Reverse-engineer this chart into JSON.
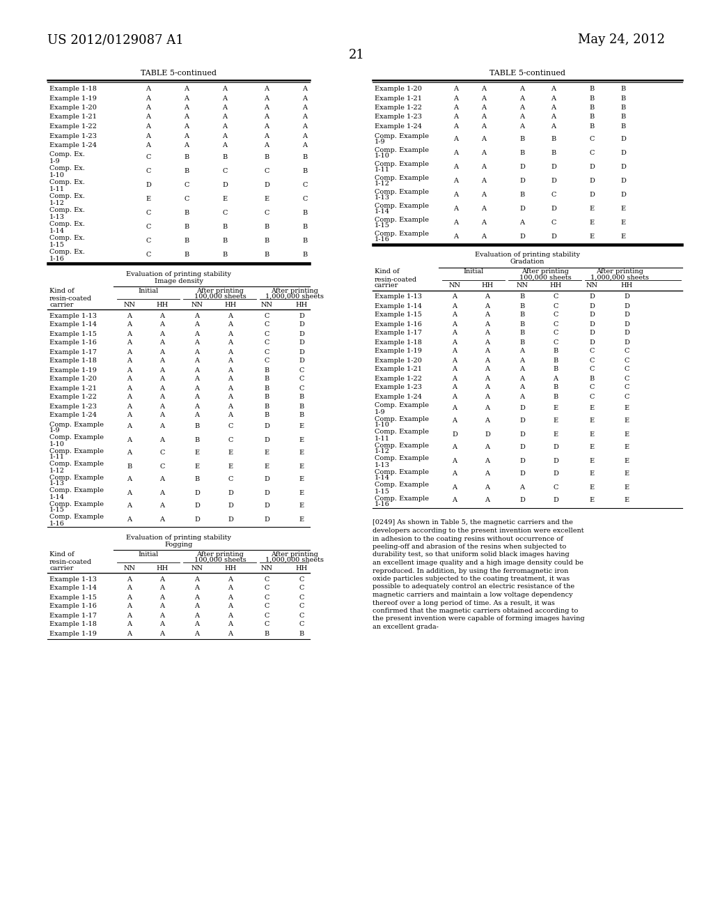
{
  "page_number": "21",
  "patent_number": "US 2012/0129087 A1",
  "date": "May 24, 2012",
  "background_color": "#ffffff",
  "left_top_table": {
    "title": "TABLE 5-continued",
    "rows": [
      [
        "Example 1-18",
        "A",
        "A",
        "A",
        "A",
        "A"
      ],
      [
        "Example 1-19",
        "A",
        "A",
        "A",
        "A",
        "A"
      ],
      [
        "Example 1-20",
        "A",
        "A",
        "A",
        "A",
        "A"
      ],
      [
        "Example 1-21",
        "A",
        "A",
        "A",
        "A",
        "A"
      ],
      [
        "Example 1-22",
        "A",
        "A",
        "A",
        "A",
        "A"
      ],
      [
        "Example 1-23",
        "A",
        "A",
        "A",
        "A",
        "A"
      ],
      [
        "Example 1-24",
        "A",
        "A",
        "A",
        "A",
        "A"
      ],
      [
        "Comp. Ex.\n1-9",
        "C",
        "B",
        "B",
        "B",
        "B"
      ],
      [
        "Comp. Ex.\n1-10",
        "C",
        "B",
        "C",
        "C",
        "B"
      ],
      [
        "Comp. Ex.\n1-11",
        "D",
        "C",
        "D",
        "D",
        "C"
      ],
      [
        "Comp. Ex.\n1-12",
        "E",
        "C",
        "E",
        "E",
        "C"
      ],
      [
        "Comp. Ex.\n1-13",
        "C",
        "B",
        "C",
        "C",
        "B"
      ],
      [
        "Comp. Ex.\n1-14",
        "C",
        "B",
        "B",
        "B",
        "B"
      ],
      [
        "Comp. Ex.\n1-15",
        "C",
        "B",
        "B",
        "B",
        "B"
      ],
      [
        "Comp. Ex.\n1-16",
        "C",
        "B",
        "B",
        "B",
        "B"
      ]
    ]
  },
  "right_top_table": {
    "title": "TABLE 5-continued",
    "rows": [
      [
        "Example 1-20",
        "A",
        "A",
        "A",
        "A",
        "B",
        "B"
      ],
      [
        "Example 1-21",
        "A",
        "A",
        "A",
        "A",
        "B",
        "B"
      ],
      [
        "Example 1-22",
        "A",
        "A",
        "A",
        "A",
        "B",
        "B"
      ],
      [
        "Example 1-23",
        "A",
        "A",
        "A",
        "A",
        "B",
        "B"
      ],
      [
        "Example 1-24",
        "A",
        "A",
        "A",
        "A",
        "B",
        "B"
      ],
      [
        "Comp. Example\n1-9",
        "A",
        "A",
        "B",
        "B",
        "C",
        "D"
      ],
      [
        "Comp. Example\n1-10",
        "A",
        "A",
        "B",
        "B",
        "C",
        "D"
      ],
      [
        "Comp. Example\n1-11",
        "A",
        "A",
        "D",
        "D",
        "D",
        "D"
      ],
      [
        "Comp. Example\n1-12",
        "A",
        "A",
        "D",
        "D",
        "D",
        "D"
      ],
      [
        "Comp. Example\n1-13",
        "A",
        "A",
        "B",
        "C",
        "D",
        "D"
      ],
      [
        "Comp. Example\n1-14",
        "A",
        "A",
        "D",
        "D",
        "E",
        "E"
      ],
      [
        "Comp. Example\n1-15",
        "A",
        "A",
        "A",
        "C",
        "E",
        "E"
      ],
      [
        "Comp. Example\n1-16",
        "A",
        "A",
        "D",
        "D",
        "E",
        "E"
      ]
    ]
  },
  "image_density_table": {
    "subtitle1": "Evaluation of printing stability",
    "subtitle2": "Image density",
    "header_col": "Kind of\nresin-coated",
    "header_carrier": "carrier",
    "col_groups": [
      "Initial",
      "After printing\n100,000 sheets",
      "After printing\n1,000,000 sheets"
    ],
    "subheaders": [
      "NN",
      "HH",
      "NN",
      "HH",
      "NN",
      "HH"
    ],
    "rows": [
      [
        "Example 1-13",
        "A",
        "A",
        "A",
        "A",
        "C",
        "D"
      ],
      [
        "Example 1-14",
        "A",
        "A",
        "A",
        "A",
        "C",
        "D"
      ],
      [
        "Example 1-15",
        "A",
        "A",
        "A",
        "A",
        "C",
        "D"
      ],
      [
        "Example 1-16",
        "A",
        "A",
        "A",
        "A",
        "C",
        "D"
      ],
      [
        "Example 1-17",
        "A",
        "A",
        "A",
        "A",
        "C",
        "D"
      ],
      [
        "Example 1-18",
        "A",
        "A",
        "A",
        "A",
        "C",
        "D"
      ],
      [
        "Example 1-19",
        "A",
        "A",
        "A",
        "A",
        "B",
        "C"
      ],
      [
        "Example 1-20",
        "A",
        "A",
        "A",
        "A",
        "B",
        "C"
      ],
      [
        "Example 1-21",
        "A",
        "A",
        "A",
        "A",
        "B",
        "C"
      ],
      [
        "Example 1-22",
        "A",
        "A",
        "A",
        "A",
        "B",
        "B"
      ],
      [
        "Example 1-23",
        "A",
        "A",
        "A",
        "A",
        "B",
        "B"
      ],
      [
        "Example 1-24",
        "A",
        "A",
        "A",
        "A",
        "B",
        "B"
      ],
      [
        "Comp. Example\n1-9",
        "A",
        "A",
        "B",
        "C",
        "D",
        "E"
      ],
      [
        "Comp. Example\n1-10",
        "A",
        "A",
        "B",
        "C",
        "D",
        "E"
      ],
      [
        "Comp. Example\n1-11",
        "A",
        "C",
        "E",
        "E",
        "E",
        "E"
      ],
      [
        "Comp. Example\n1-12",
        "B",
        "C",
        "E",
        "E",
        "E",
        "E"
      ],
      [
        "Comp. Example\n1-13",
        "A",
        "A",
        "B",
        "C",
        "D",
        "E"
      ],
      [
        "Comp. Example\n1-14",
        "A",
        "A",
        "D",
        "D",
        "D",
        "E"
      ],
      [
        "Comp. Example\n1-15",
        "A",
        "A",
        "D",
        "D",
        "D",
        "E"
      ],
      [
        "Comp. Example\n1-16",
        "A",
        "A",
        "D",
        "D",
        "D",
        "E"
      ]
    ]
  },
  "fogging_table": {
    "subtitle1": "Evaluation of printing stability",
    "subtitle2": "Fogging",
    "header_col": "Kind of\nresin-coated",
    "header_carrier": "carrier",
    "col_groups": [
      "Initial",
      "After printing\n100,000 sheets",
      "After printing\n1,000,000 sheets"
    ],
    "subheaders": [
      "NN",
      "HH",
      "NN",
      "HH",
      "NN",
      "HH"
    ],
    "rows": [
      [
        "Example 1-13",
        "A",
        "A",
        "A",
        "A",
        "C",
        "C"
      ],
      [
        "Example 1-14",
        "A",
        "A",
        "A",
        "A",
        "C",
        "C"
      ],
      [
        "Example 1-15",
        "A",
        "A",
        "A",
        "A",
        "C",
        "C"
      ],
      [
        "Example 1-16",
        "A",
        "A",
        "A",
        "A",
        "C",
        "C"
      ],
      [
        "Example 1-17",
        "A",
        "A",
        "A",
        "A",
        "C",
        "C"
      ],
      [
        "Example 1-18",
        "A",
        "A",
        "A",
        "A",
        "C",
        "C"
      ],
      [
        "Example 1-19",
        "A",
        "A",
        "A",
        "A",
        "B",
        "B"
      ]
    ]
  },
  "gradation_table": {
    "subtitle1": "Evaluation of printing stability",
    "subtitle2": "Gradation",
    "header_col": "Kind of\nresin-coated",
    "header_carrier": "carrier",
    "col_groups": [
      "Initial",
      "After printing\n100,000 sheets",
      "After printing\n1,000,000 sheets"
    ],
    "subheaders": [
      "NN",
      "HH",
      "NN",
      "HH",
      "NN",
      "HH"
    ],
    "rows": [
      [
        "Example 1-13",
        "A",
        "A",
        "B",
        "C",
        "D",
        "D"
      ],
      [
        "Example 1-14",
        "A",
        "A",
        "B",
        "C",
        "D",
        "D"
      ],
      [
        "Example 1-15",
        "A",
        "A",
        "B",
        "C",
        "D",
        "D"
      ],
      [
        "Example 1-16",
        "A",
        "A",
        "B",
        "C",
        "D",
        "D"
      ],
      [
        "Example 1-17",
        "A",
        "A",
        "B",
        "C",
        "D",
        "D"
      ],
      [
        "Example 1-18",
        "A",
        "A",
        "B",
        "C",
        "D",
        "D"
      ],
      [
        "Example 1-19",
        "A",
        "A",
        "A",
        "B",
        "C",
        "C"
      ],
      [
        "Example 1-20",
        "A",
        "A",
        "A",
        "B",
        "C",
        "C"
      ],
      [
        "Example 1-21",
        "A",
        "A",
        "A",
        "B",
        "C",
        "C"
      ],
      [
        "Example 1-22",
        "A",
        "A",
        "A",
        "A",
        "B",
        "C"
      ],
      [
        "Example 1-23",
        "A",
        "A",
        "A",
        "B",
        "C",
        "C"
      ],
      [
        "Example 1-24",
        "A",
        "A",
        "A",
        "B",
        "C",
        "C"
      ],
      [
        "Comp. Example\n1-9",
        "A",
        "A",
        "D",
        "E",
        "E",
        "E"
      ],
      [
        "Comp. Example\n1-10",
        "A",
        "A",
        "D",
        "E",
        "E",
        "E"
      ],
      [
        "Comp. Example\n1-11",
        "D",
        "D",
        "D",
        "E",
        "E",
        "E"
      ],
      [
        "Comp. Example\n1-12",
        "A",
        "A",
        "D",
        "D",
        "E",
        "E"
      ],
      [
        "Comp. Example\n1-13",
        "A",
        "A",
        "D",
        "D",
        "E",
        "E"
      ],
      [
        "Comp. Example\n1-14",
        "A",
        "A",
        "D",
        "D",
        "E",
        "E"
      ],
      [
        "Comp. Example\n1-15",
        "A",
        "A",
        "A",
        "C",
        "E",
        "E"
      ],
      [
        "Comp. Example\n1-16",
        "A",
        "A",
        "D",
        "D",
        "E",
        "E"
      ]
    ]
  },
  "paragraph": "[0249]   As shown in Table 5, the magnetic carriers and the developers according to the present invention were excellent in adhesion to the coating resins without occurrence of peeling-off and abrasion of the resins when subjected to durability test, so that uniform solid black images having an excellent image quality and a high image density could be reproduced. In addition, by using the ferromagnetic iron oxide particles subjected to the coating treatment, it was possible to adequately control an electric resistance of the magnetic carriers and maintain a low voltage dependency thereof over a long period of time. As a result, it was confirmed that the magnetic carriers obtained according to the present invention were capable of forming images having an excellent grada-"
}
